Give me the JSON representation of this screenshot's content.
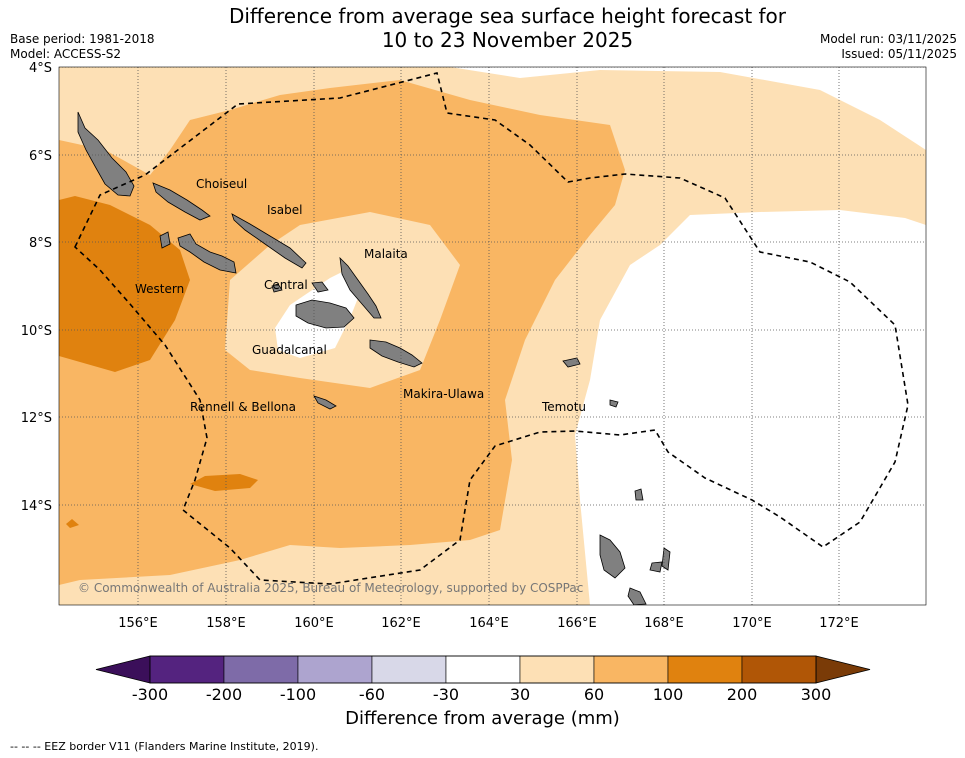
{
  "title_line1": "Difference from average sea surface height forecast for",
  "title_line2": "10 to 23 November 2025",
  "base_period": "Base period: 1981-2018",
  "model": "Model: ACCESS-S2",
  "model_run": "Model run: 03/11/2025",
  "issued": "Issued: 05/11/2025",
  "copyright": "© Commonwealth of Australia 2025, Bureau of Meteorology, supported by COSPPac",
  "lat_labels": [
    "4°S",
    "6°S",
    "8°S",
    "10°S",
    "12°S",
    "14°S"
  ],
  "lon_labels": [
    "156°E",
    "158°E",
    "160°E",
    "162°E",
    "164°E",
    "166°E",
    "168°E",
    "170°E",
    "172°E"
  ],
  "provinces": [
    "Choiseul",
    "Isabel",
    "Malaita",
    "Western",
    "Central",
    "Guadalcanal",
    "Rennell & Bellona",
    "Makira-Ulawa",
    "Temotu"
  ],
  "colorbar": {
    "title": "Difference from average (mm)",
    "ticks": [
      "-300",
      "-200",
      "-100",
      "-60",
      "-30",
      "30",
      "60",
      "100",
      "200",
      "300"
    ],
    "colors": [
      "#3b0f5a",
      "#54237f",
      "#7e6ba8",
      "#ada4cf",
      "#d8d8e8",
      "#ffffff",
      "#fde0b5",
      "#f9b663",
      "#e0820f",
      "#b05606",
      "#7a3b07"
    ]
  },
  "legend_note": "--  --  -- EEZ border V11 (Flanders Marine Institute, 2019)."
}
